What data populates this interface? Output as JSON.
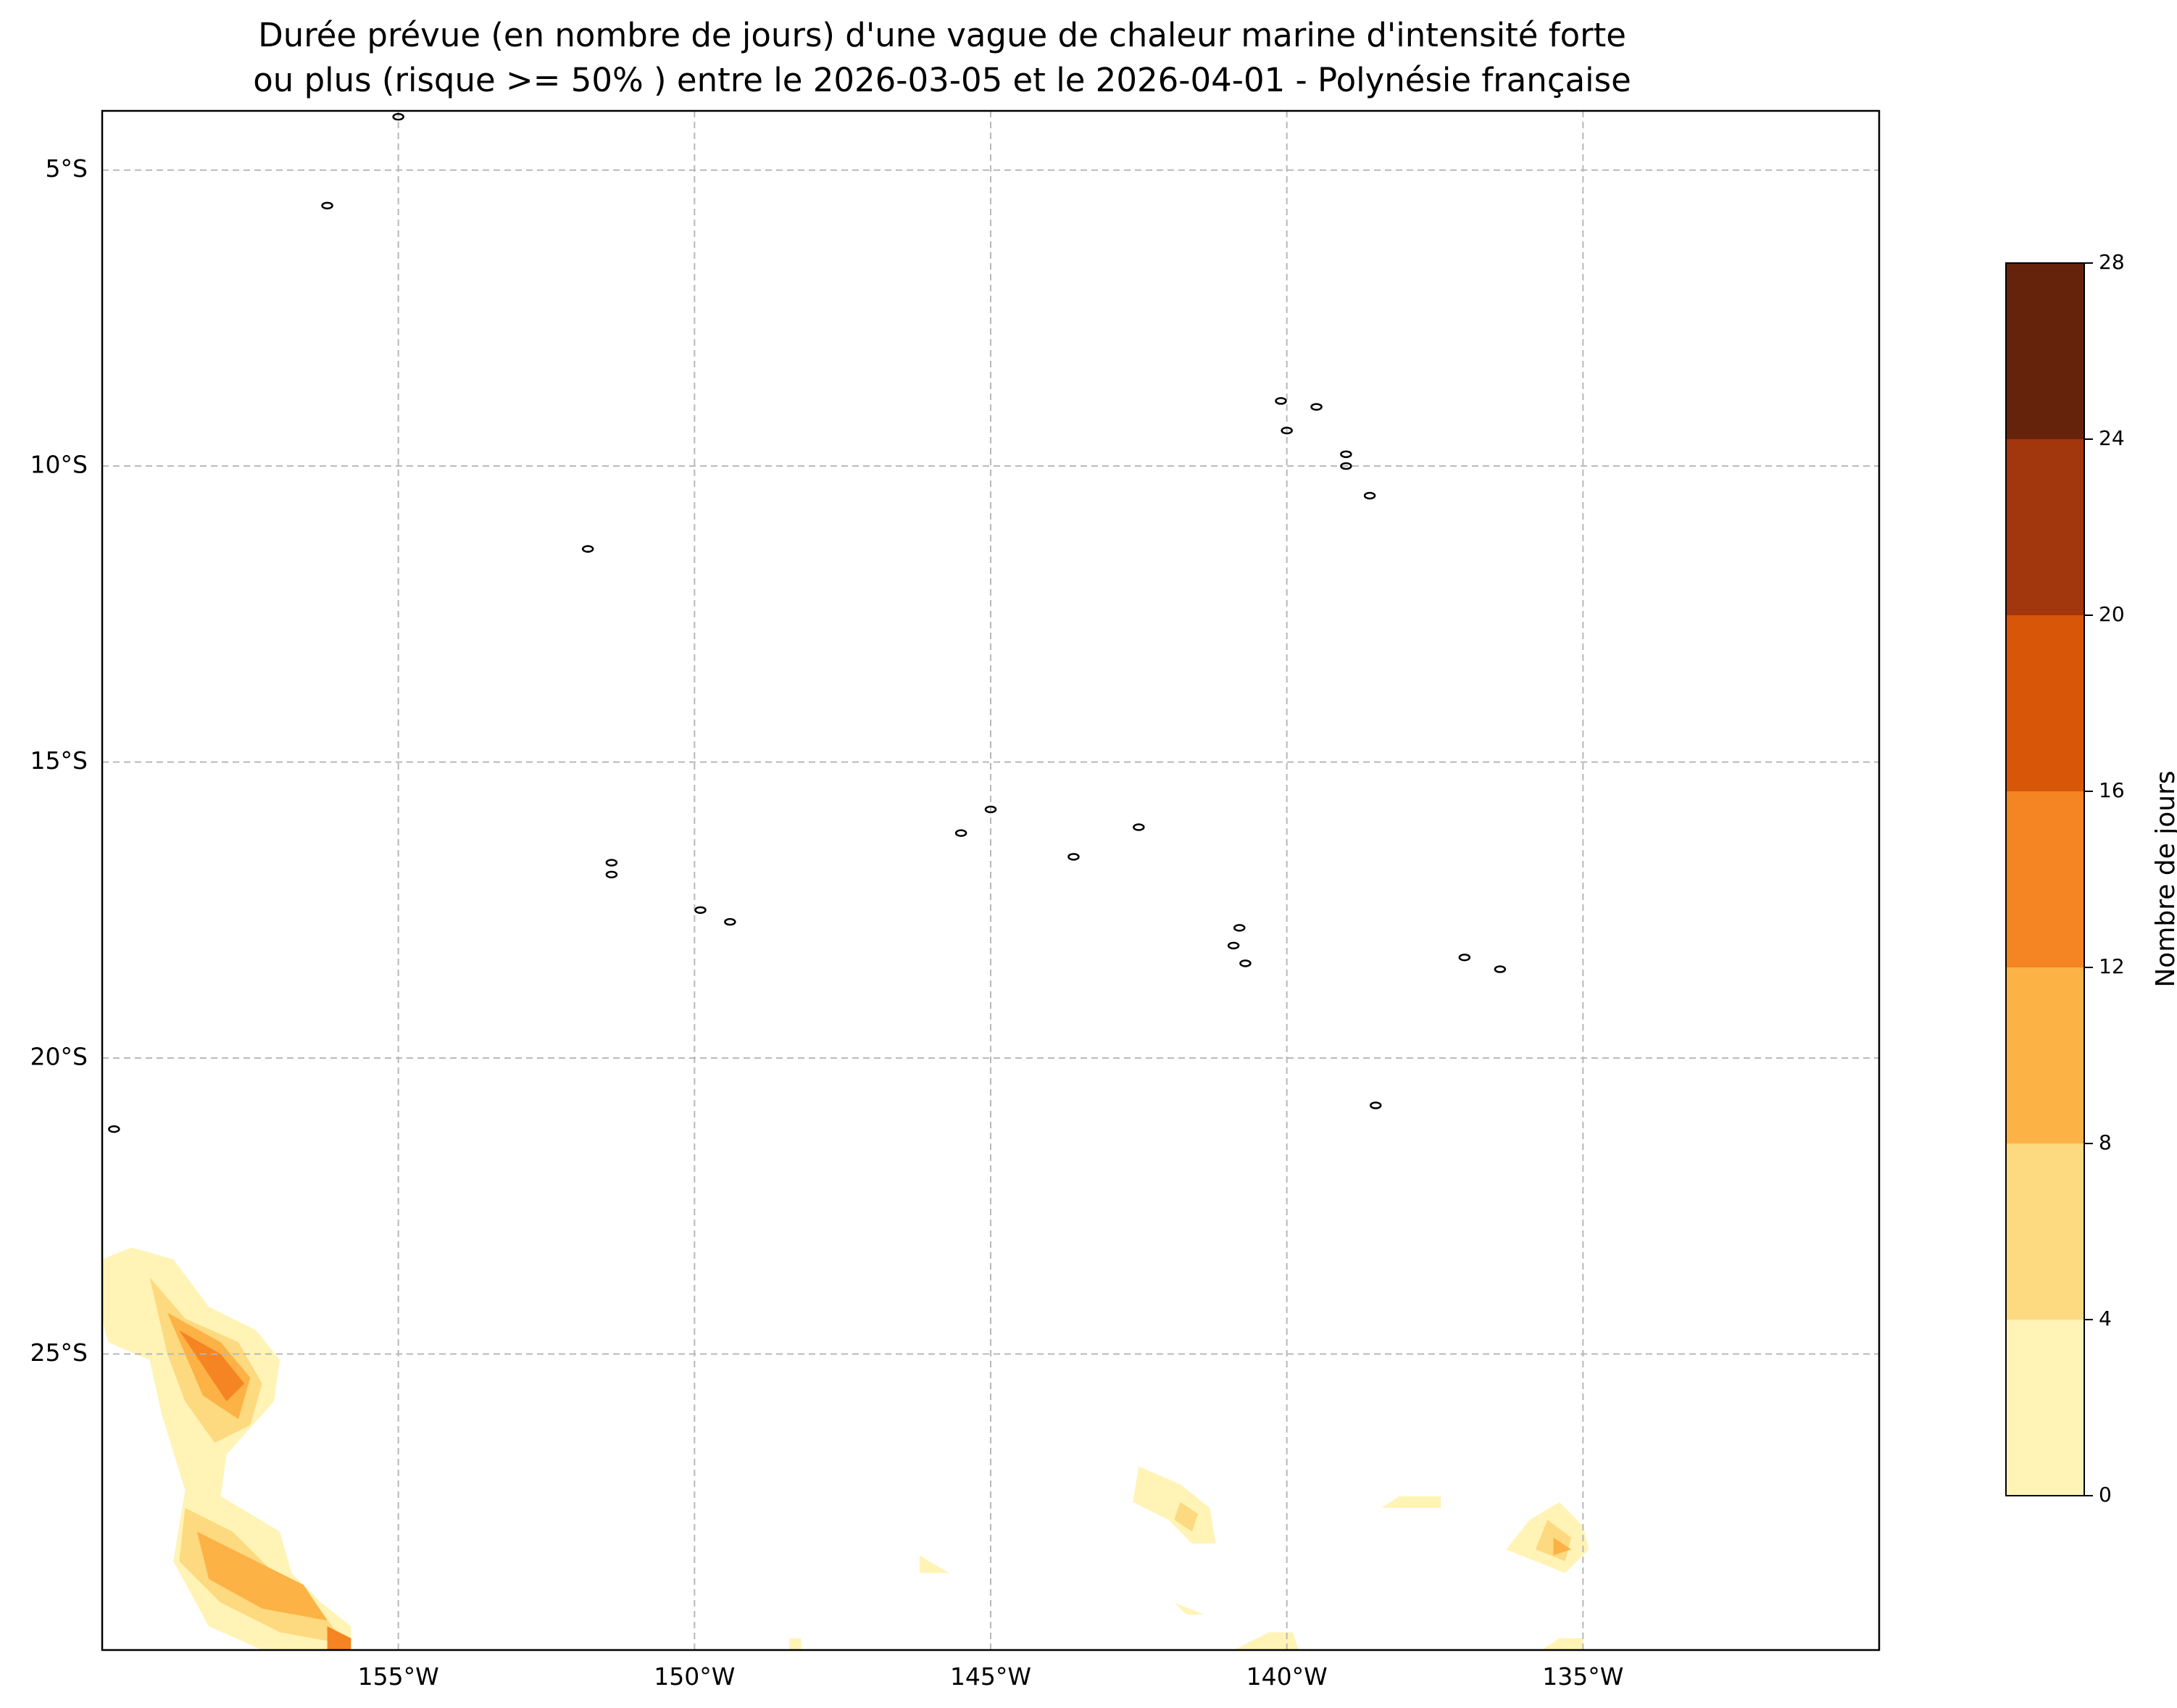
{
  "title": {
    "line1": "Durée prévue (en nombre de jours) d'une vague de chaleur marine d'intensité forte",
    "line2": "ou plus (risque >= 50% ) entre le 2026-03-05 et le 2026-04-01 - Polynésie française"
  },
  "map": {
    "lon_range": [
      -160,
      -130
    ],
    "lat_range": [
      -30,
      -4
    ],
    "lon_ticks": [
      {
        "value": -155,
        "label": "155°W"
      },
      {
        "value": -150,
        "label": "150°W"
      },
      {
        "value": -145,
        "label": "145°W"
      },
      {
        "value": -140,
        "label": "140°W"
      },
      {
        "value": -135,
        "label": "135°W"
      }
    ],
    "lat_ticks": [
      {
        "value": -5,
        "label": "5°S"
      },
      {
        "value": -10,
        "label": "10°S"
      },
      {
        "value": -15,
        "label": "15°S"
      },
      {
        "value": -20,
        "label": "20°S"
      },
      {
        "value": -25,
        "label": "25°S"
      }
    ],
    "gridlines": true,
    "islands": [
      {
        "lon": -155.0,
        "lat": -4.1
      },
      {
        "lon": -156.2,
        "lat": -5.6
      },
      {
        "lon": -140.1,
        "lat": -8.9
      },
      {
        "lon": -139.5,
        "lat": -9.0
      },
      {
        "lon": -140.0,
        "lat": -9.4
      },
      {
        "lon": -139.0,
        "lat": -9.8
      },
      {
        "lon": -139.0,
        "lat": -10.0
      },
      {
        "lon": -138.6,
        "lat": -10.5
      },
      {
        "lon": -151.8,
        "lat": -11.4
      },
      {
        "lon": -145.5,
        "lat": -16.2
      },
      {
        "lon": -145.0,
        "lat": -15.8
      },
      {
        "lon": -142.5,
        "lat": -16.1
      },
      {
        "lon": -143.6,
        "lat": -16.6
      },
      {
        "lon": -151.4,
        "lat": -16.7
      },
      {
        "lon": -151.4,
        "lat": -16.9
      },
      {
        "lon": -149.9,
        "lat": -17.5
      },
      {
        "lon": -149.4,
        "lat": -17.7
      },
      {
        "lon": -140.8,
        "lat": -17.8
      },
      {
        "lon": -140.9,
        "lat": -18.1
      },
      {
        "lon": -140.7,
        "lat": -18.4
      },
      {
        "lon": -137.0,
        "lat": -18.3
      },
      {
        "lon": -136.4,
        "lat": -18.5
      },
      {
        "lon": -138.5,
        "lat": -20.8
      },
      {
        "lon": -159.8,
        "lat": -21.2
      }
    ]
  },
  "colorbar": {
    "label": "Nombre de jours",
    "levels": [
      0,
      4,
      8,
      12,
      16,
      20,
      24,
      28
    ],
    "tick_labels": [
      "0",
      "4",
      "8",
      "12",
      "16",
      "20",
      "24",
      "28"
    ],
    "colors": [
      "#fff4b6",
      "#fdd980",
      "#fdb246",
      "#f58422",
      "#d75608",
      "#a2360c",
      "#66230b"
    ]
  },
  "chart_data": {
    "type": "heatmap",
    "title": "Durée prévue (en nombre de jours) d'une vague de chaleur marine d'intensité forte ou plus (risque >= 50% ) entre le 2026-03-05 et le 2026-04-01 - Polynésie française",
    "legend_label": "Nombre de jours",
    "levels": [
      0,
      4,
      8,
      12,
      16,
      20,
      24,
      28
    ],
    "regions": [
      {
        "level_index": 0,
        "points": [
          [
            -160,
            -23.4
          ],
          [
            -159.5,
            -23.2
          ],
          [
            -158.8,
            -23.4
          ],
          [
            -158.2,
            -24.2
          ],
          [
            -157.4,
            -24.6
          ],
          [
            -157.0,
            -25.1
          ],
          [
            -157.1,
            -25.8
          ],
          [
            -157.9,
            -26.7
          ],
          [
            -158.0,
            -27.4
          ],
          [
            -157.0,
            -28.0
          ],
          [
            -156.8,
            -28.7
          ],
          [
            -156.3,
            -29.2
          ],
          [
            -155.8,
            -29.6
          ],
          [
            -155.8,
            -30.0
          ],
          [
            -157.3,
            -30.0
          ],
          [
            -158.2,
            -29.6
          ],
          [
            -158.8,
            -28.5
          ],
          [
            -158.6,
            -27.3
          ],
          [
            -159.0,
            -26.0
          ],
          [
            -159.2,
            -25.1
          ],
          [
            -159.9,
            -24.8
          ],
          [
            -160,
            -24.4
          ]
        ]
      },
      {
        "level_index": 1,
        "points": [
          [
            -159.2,
            -23.7
          ],
          [
            -158.6,
            -24.4
          ],
          [
            -157.7,
            -24.8
          ],
          [
            -157.3,
            -25.5
          ],
          [
            -157.5,
            -26.2
          ],
          [
            -158.1,
            -26.5
          ],
          [
            -158.6,
            -25.8
          ],
          [
            -158.9,
            -25.0
          ]
        ]
      },
      {
        "level_index": 1,
        "points": [
          [
            -158.6,
            -27.6
          ],
          [
            -157.8,
            -28.0
          ],
          [
            -157.2,
            -28.6
          ],
          [
            -156.4,
            -29.2
          ],
          [
            -155.9,
            -29.9
          ],
          [
            -157.0,
            -29.7
          ],
          [
            -158.0,
            -29.2
          ],
          [
            -158.7,
            -28.5
          ]
        ]
      },
      {
        "level_index": 2,
        "points": [
          [
            -158.9,
            -24.3
          ],
          [
            -158.0,
            -24.8
          ],
          [
            -157.5,
            -25.4
          ],
          [
            -157.7,
            -26.1
          ],
          [
            -158.3,
            -25.7
          ],
          [
            -158.6,
            -25.0
          ]
        ]
      },
      {
        "level_index": 2,
        "points": [
          [
            -158.4,
            -28.0
          ],
          [
            -157.6,
            -28.4
          ],
          [
            -156.6,
            -28.9
          ],
          [
            -156.2,
            -29.5
          ],
          [
            -157.3,
            -29.3
          ],
          [
            -158.2,
            -28.8
          ]
        ]
      },
      {
        "level_index": 3,
        "points": [
          [
            -158.7,
            -24.6
          ],
          [
            -158.0,
            -25.0
          ],
          [
            -157.6,
            -25.5
          ],
          [
            -157.9,
            -25.8
          ],
          [
            -158.3,
            -25.2
          ]
        ]
      },
      {
        "level_index": 3,
        "points": [
          [
            -156.2,
            -29.6
          ],
          [
            -155.8,
            -29.8
          ],
          [
            -155.8,
            -30.0
          ],
          [
            -156.2,
            -30.0
          ]
        ]
      },
      {
        "level_index": 0,
        "points": [
          [
            -142.5,
            -26.9
          ],
          [
            -141.8,
            -27.2
          ],
          [
            -141.3,
            -27.6
          ],
          [
            -141.2,
            -28.2
          ],
          [
            -141.6,
            -28.2
          ],
          [
            -142.0,
            -27.8
          ],
          [
            -142.6,
            -27.5
          ]
        ]
      },
      {
        "level_index": 1,
        "points": [
          [
            -141.8,
            -27.5
          ],
          [
            -141.5,
            -27.7
          ],
          [
            -141.6,
            -28.0
          ],
          [
            -141.9,
            -27.8
          ]
        ]
      },
      {
        "level_index": 0,
        "points": [
          [
            -138.1,
            -27.4
          ],
          [
            -137.4,
            -27.4
          ],
          [
            -137.4,
            -27.6
          ],
          [
            -138.4,
            -27.6
          ]
        ]
      },
      {
        "level_index": 0,
        "points": [
          [
            -135.4,
            -27.5
          ],
          [
            -135.0,
            -27.9
          ],
          [
            -134.9,
            -28.3
          ],
          [
            -135.3,
            -28.7
          ],
          [
            -135.8,
            -28.5
          ],
          [
            -136.3,
            -28.3
          ],
          [
            -135.9,
            -27.8
          ]
        ]
      },
      {
        "level_index": 1,
        "points": [
          [
            -135.6,
            -27.8
          ],
          [
            -135.2,
            -28.1
          ],
          [
            -135.3,
            -28.5
          ],
          [
            -135.8,
            -28.3
          ]
        ]
      },
      {
        "level_index": 2,
        "points": [
          [
            -135.5,
            -28.1
          ],
          [
            -135.2,
            -28.3
          ],
          [
            -135.5,
            -28.4
          ]
        ]
      },
      {
        "level_index": 0,
        "points": [
          [
            -146.2,
            -28.4
          ],
          [
            -145.7,
            -28.7
          ],
          [
            -146.2,
            -28.7
          ]
        ]
      },
      {
        "level_index": 0,
        "points": [
          [
            -141.9,
            -29.2
          ],
          [
            -141.4,
            -29.4
          ],
          [
            -141.7,
            -29.4
          ]
        ]
      },
      {
        "level_index": 0,
        "points": [
          [
            -148.4,
            -29.8
          ],
          [
            -148.2,
            -29.8
          ],
          [
            -148.2,
            -30.0
          ],
          [
            -148.4,
            -30.0
          ]
        ]
      },
      {
        "level_index": 0,
        "points": [
          [
            -140.3,
            -29.7
          ],
          [
            -140.9,
            -30.0
          ],
          [
            -139.8,
            -30.0
          ],
          [
            -139.9,
            -29.7
          ]
        ]
      },
      {
        "level_index": 0,
        "points": [
          [
            -135.4,
            -29.8
          ],
          [
            -135.0,
            -29.8
          ],
          [
            -135.0,
            -30.0
          ],
          [
            -135.7,
            -30.0
          ]
        ]
      }
    ]
  }
}
